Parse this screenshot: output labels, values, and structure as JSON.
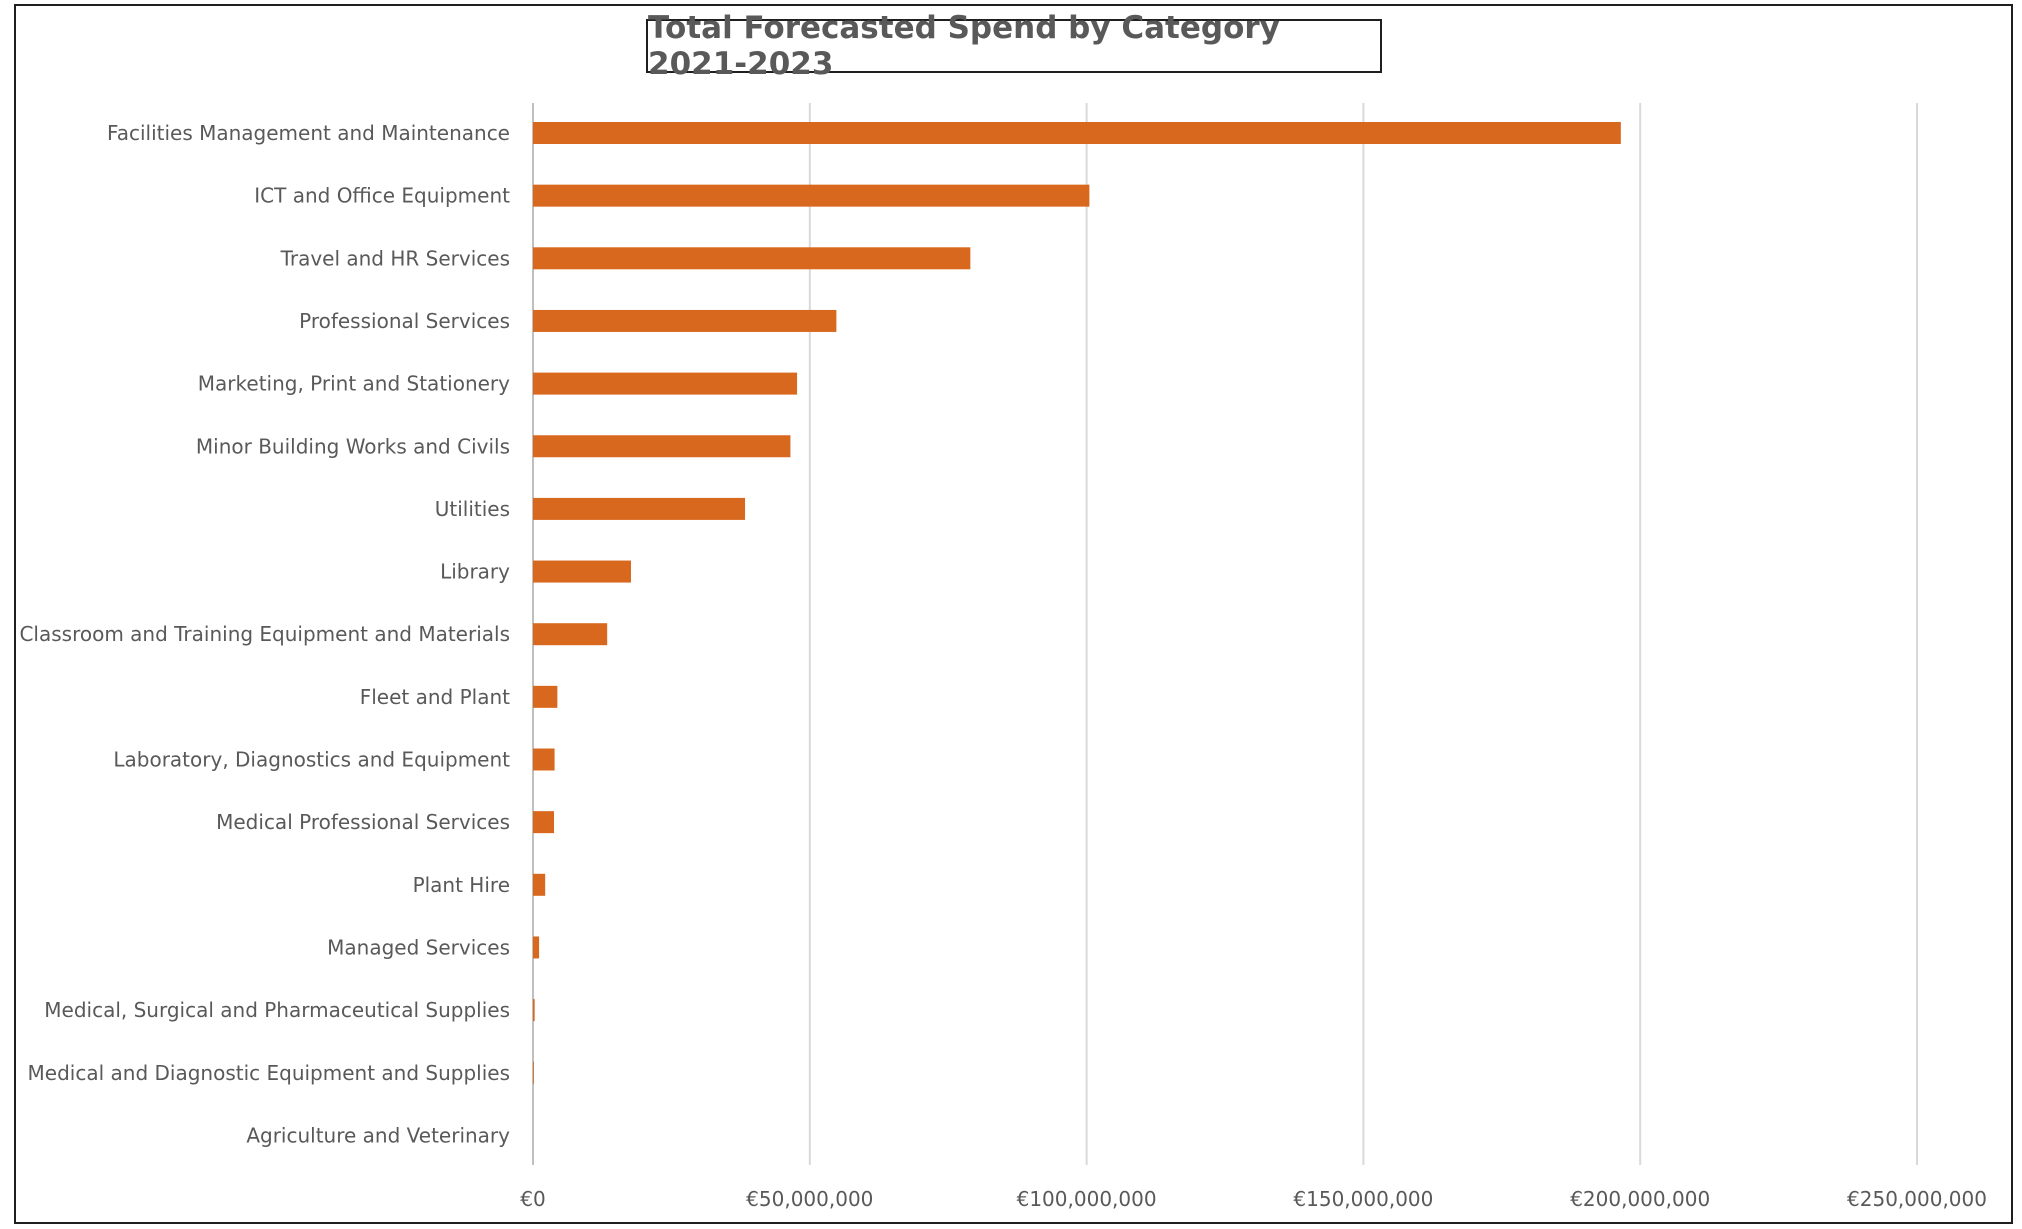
{
  "chart_data": {
    "type": "bar",
    "orientation": "horizontal",
    "title": "Total Forecasted Spend by Category 2021-2023",
    "categories": [
      "Facilities Management and Maintenance",
      "ICT and Office Equipment",
      "Travel and HR Services",
      "Professional Services",
      "Marketing, Print and Stationery",
      "Minor Building Works and Civils",
      "Utilities",
      "Library",
      "Classroom and Training Equipment and Materials",
      "Fleet and Plant",
      "Laboratory, Diagnostics and Equipment",
      "Medical Professional Services",
      "Plant Hire",
      "Managed Services",
      "Medical, Surgical and Pharmaceutical Supplies",
      "Medical and Diagnostic Equipment and Supplies",
      "Agriculture and Veterinary"
    ],
    "values": [
      196500000,
      100500000,
      79000000,
      54800000,
      47700000,
      46500000,
      38300000,
      17700000,
      13400000,
      4400000,
      3900000,
      3800000,
      2200000,
      1100000,
      300000,
      150000,
      0
    ],
    "xlim": [
      0,
      250000000
    ],
    "x_ticks": [
      0,
      50000000,
      100000000,
      150000000,
      200000000,
      250000000
    ],
    "x_tick_labels": [
      "€0",
      "€50,000,000",
      "€100,000,000",
      "€150,000,000",
      "€200,000,000",
      "€250,000,000"
    ],
    "xlabel": "",
    "ylabel": "",
    "grid": "vertical",
    "legend": "none",
    "bar_color": "#D9681F",
    "grid_color": "#D9D9D9"
  }
}
